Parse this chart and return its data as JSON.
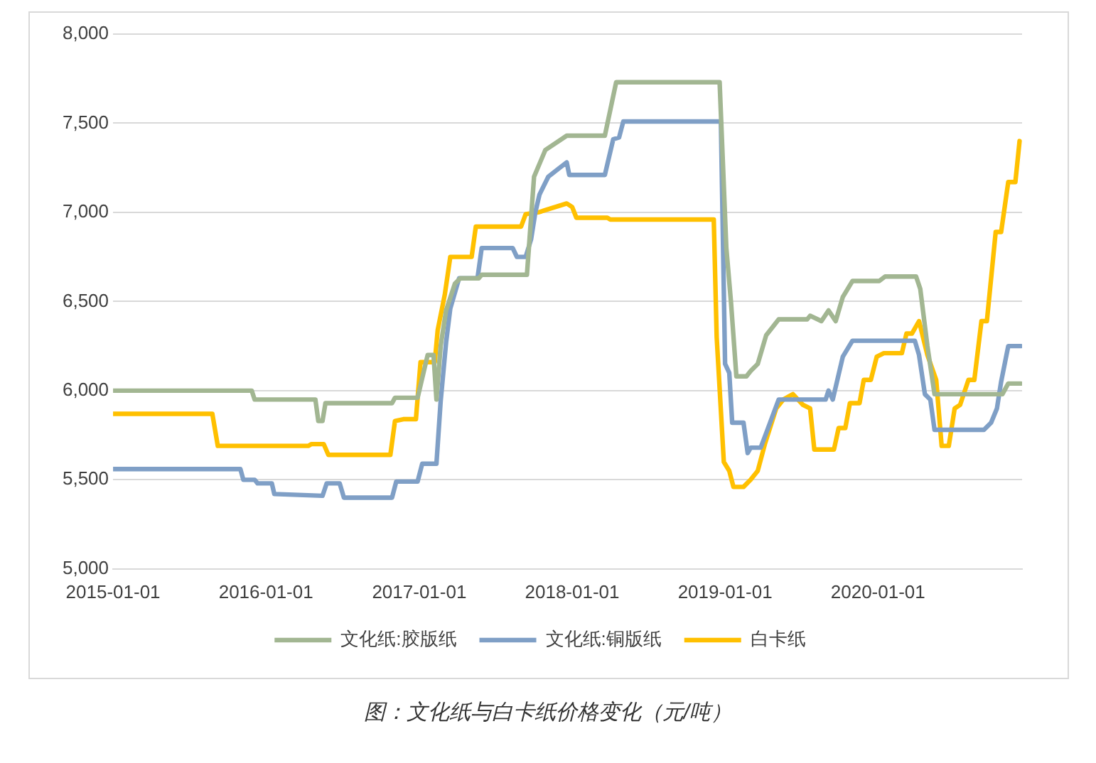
{
  "chart_data": {
    "type": "line",
    "xlim": [
      "2015-01-01",
      "2020-12-10"
    ],
    "xticks": [
      "2015-01-01",
      "2016-01-01",
      "2017-01-01",
      "2018-01-01",
      "2019-01-01",
      "2020-01-01"
    ],
    "ylim": [
      5000,
      8000
    ],
    "yticks": [
      {
        "value": 5000,
        "label": "5,000"
      },
      {
        "value": 5500,
        "label": "5,500"
      },
      {
        "value": 6000,
        "label": "6,000"
      },
      {
        "value": 6500,
        "label": "6,500"
      },
      {
        "value": 7000,
        "label": "7,000"
      },
      {
        "value": 7500,
        "label": "7,500"
      },
      {
        "value": 8000,
        "label": "8,000"
      }
    ],
    "grid": "y",
    "legend": "bottom",
    "marker": "none",
    "line_style": "solid",
    "annotations": [
      "图：文化纸与白卡纸价格变化（元/吨）"
    ],
    "series": [
      {
        "name": "文化纸:胶版纸",
        "color": "#a2b692",
        "x": [
          "2015-01-01",
          "2015-11-28",
          "2015-12-05",
          "2016-04-28",
          "2016-05-05",
          "2016-05-15",
          "2016-05-22",
          "2016-10-28",
          "2016-11-04",
          "2016-12-28",
          "2017-01-21",
          "2017-02-04",
          "2017-02-11",
          "2017-02-21",
          "2017-03-06",
          "2017-03-27",
          "2017-04-09",
          "2017-05-23",
          "2017-05-30",
          "2017-09-15",
          "2017-10-02",
          "2017-10-29",
          "2017-12-19",
          "2018-03-20",
          "2018-04-16",
          "2018-12-19",
          "2019-01-04",
          "2019-01-15",
          "2019-01-28",
          "2019-02-21",
          "2019-03-03",
          "2019-03-20",
          "2019-04-09",
          "2019-05-09",
          "2019-07-16",
          "2019-07-23",
          "2019-08-19",
          "2019-09-05",
          "2019-09-22",
          "2019-10-09",
          "2019-11-01",
          "2020-01-04",
          "2020-01-18",
          "2020-04-01",
          "2020-04-11",
          "2020-04-28",
          "2020-05-15",
          "2020-10-24",
          "2020-11-07",
          "2020-12-07"
        ],
        "values": [
          6000,
          6000,
          5950,
          5950,
          5830,
          5830,
          5930,
          5930,
          5960,
          5960,
          6200,
          6200,
          5950,
          6250,
          6450,
          6600,
          6630,
          6630,
          6650,
          6650,
          7200,
          7350,
          7430,
          7430,
          7730,
          7730,
          6800,
          6500,
          6080,
          6080,
          6110,
          6150,
          6310,
          6400,
          6400,
          6420,
          6390,
          6450,
          6390,
          6525,
          6615,
          6615,
          6640,
          6640,
          6570,
          6250,
          5980,
          5980,
          6040,
          6040
        ]
      },
      {
        "name": "文化纸:铜版纸",
        "color": "#7f9fc6",
        "x": [
          "2015-01-01",
          "2015-11-01",
          "2015-11-08",
          "2015-12-05",
          "2015-12-12",
          "2016-01-15",
          "2016-01-21",
          "2016-05-15",
          "2016-05-25",
          "2016-06-25",
          "2016-07-05",
          "2016-10-28",
          "2016-11-07",
          "2016-12-28",
          "2017-01-08",
          "2017-02-11",
          "2017-02-21",
          "2017-03-06",
          "2017-03-16",
          "2017-04-06",
          "2017-05-20",
          "2017-05-30",
          "2017-08-12",
          "2017-08-22",
          "2017-09-12",
          "2017-09-25",
          "2017-10-05",
          "2017-10-15",
          "2017-11-05",
          "2017-12-02",
          "2017-12-19",
          "2017-12-25",
          "2018-03-20",
          "2018-04-09",
          "2018-04-23",
          "2018-05-03",
          "2018-12-22",
          "2019-01-01",
          "2019-01-11",
          "2019-01-18",
          "2019-02-14",
          "2019-02-24",
          "2019-03-03",
          "2019-03-27",
          "2019-04-12",
          "2019-05-09",
          "2019-08-29",
          "2019-09-05",
          "2019-09-15",
          "2019-10-09",
          "2019-11-01",
          "2020-03-29",
          "2020-04-08",
          "2020-04-22",
          "2020-05-05",
          "2020-05-15",
          "2020-09-10",
          "2020-09-27",
          "2020-10-11",
          "2020-10-21",
          "2020-11-07",
          "2020-12-07"
        ],
        "values": [
          5560,
          5560,
          5500,
          5500,
          5480,
          5480,
          5420,
          5410,
          5480,
          5480,
          5400,
          5400,
          5490,
          5490,
          5590,
          5590,
          5940,
          6270,
          6460,
          6630,
          6630,
          6800,
          6800,
          6750,
          6750,
          6850,
          7000,
          7100,
          7200,
          7250,
          7280,
          7210,
          7210,
          7410,
          7420,
          7510,
          7510,
          6150,
          6100,
          5820,
          5820,
          5650,
          5680,
          5680,
          5780,
          5950,
          5950,
          6000,
          5950,
          6190,
          6280,
          6280,
          6200,
          5980,
          5950,
          5780,
          5780,
          5820,
          5900,
          6050,
          6250,
          6250
        ]
      },
      {
        "name": "白卡纸",
        "color": "#ffc000",
        "x": [
          "2015-01-01",
          "2015-08-26",
          "2015-09-08",
          "2016-04-11",
          "2016-04-18",
          "2016-05-18",
          "2016-05-29",
          "2016-10-24",
          "2016-11-04",
          "2016-11-24",
          "2016-12-24",
          "2017-01-04",
          "2017-02-07",
          "2017-02-14",
          "2017-03-03",
          "2017-03-16",
          "2017-05-06",
          "2017-05-16",
          "2017-09-01",
          "2017-09-12",
          "2017-10-12",
          "2017-12-19",
          "2018-01-01",
          "2018-01-11",
          "2018-03-26",
          "2018-04-02",
          "2018-12-05",
          "2018-12-12",
          "2018-12-29",
          "2019-01-11",
          "2019-01-21",
          "2019-02-14",
          "2019-03-03",
          "2019-03-20",
          "2019-04-06",
          "2019-05-03",
          "2019-05-20",
          "2019-06-12",
          "2019-07-06",
          "2019-07-23",
          "2019-08-02",
          "2019-09-18",
          "2019-09-29",
          "2019-10-15",
          "2019-10-26",
          "2019-11-18",
          "2019-11-28",
          "2019-12-15",
          "2019-12-29",
          "2020-01-15",
          "2020-02-27",
          "2020-03-09",
          "2020-03-22",
          "2020-04-08",
          "2020-04-28",
          "2020-05-19",
          "2020-06-01",
          "2020-06-18",
          "2020-07-02",
          "2020-07-15",
          "2020-08-04",
          "2020-08-18",
          "2020-09-04",
          "2020-09-17",
          "2020-10-08",
          "2020-10-21",
          "2020-11-07",
          "2020-11-24",
          "2020-12-04"
        ],
        "values": [
          5870,
          5870,
          5690,
          5690,
          5700,
          5700,
          5640,
          5640,
          5830,
          5840,
          5840,
          6160,
          6160,
          6340,
          6540,
          6750,
          6750,
          6920,
          6920,
          6990,
          7000,
          7050,
          7030,
          6970,
          6970,
          6960,
          6960,
          6300,
          5600,
          5550,
          5460,
          5460,
          5500,
          5550,
          5700,
          5900,
          5950,
          5980,
          5920,
          5900,
          5670,
          5670,
          5790,
          5790,
          5930,
          5930,
          6060,
          6060,
          6190,
          6210,
          6210,
          6320,
          6320,
          6390,
          6200,
          6060,
          5690,
          5690,
          5900,
          5920,
          6060,
          6060,
          6390,
          6390,
          6890,
          6890,
          7170,
          7170,
          7400
        ]
      }
    ]
  }
}
